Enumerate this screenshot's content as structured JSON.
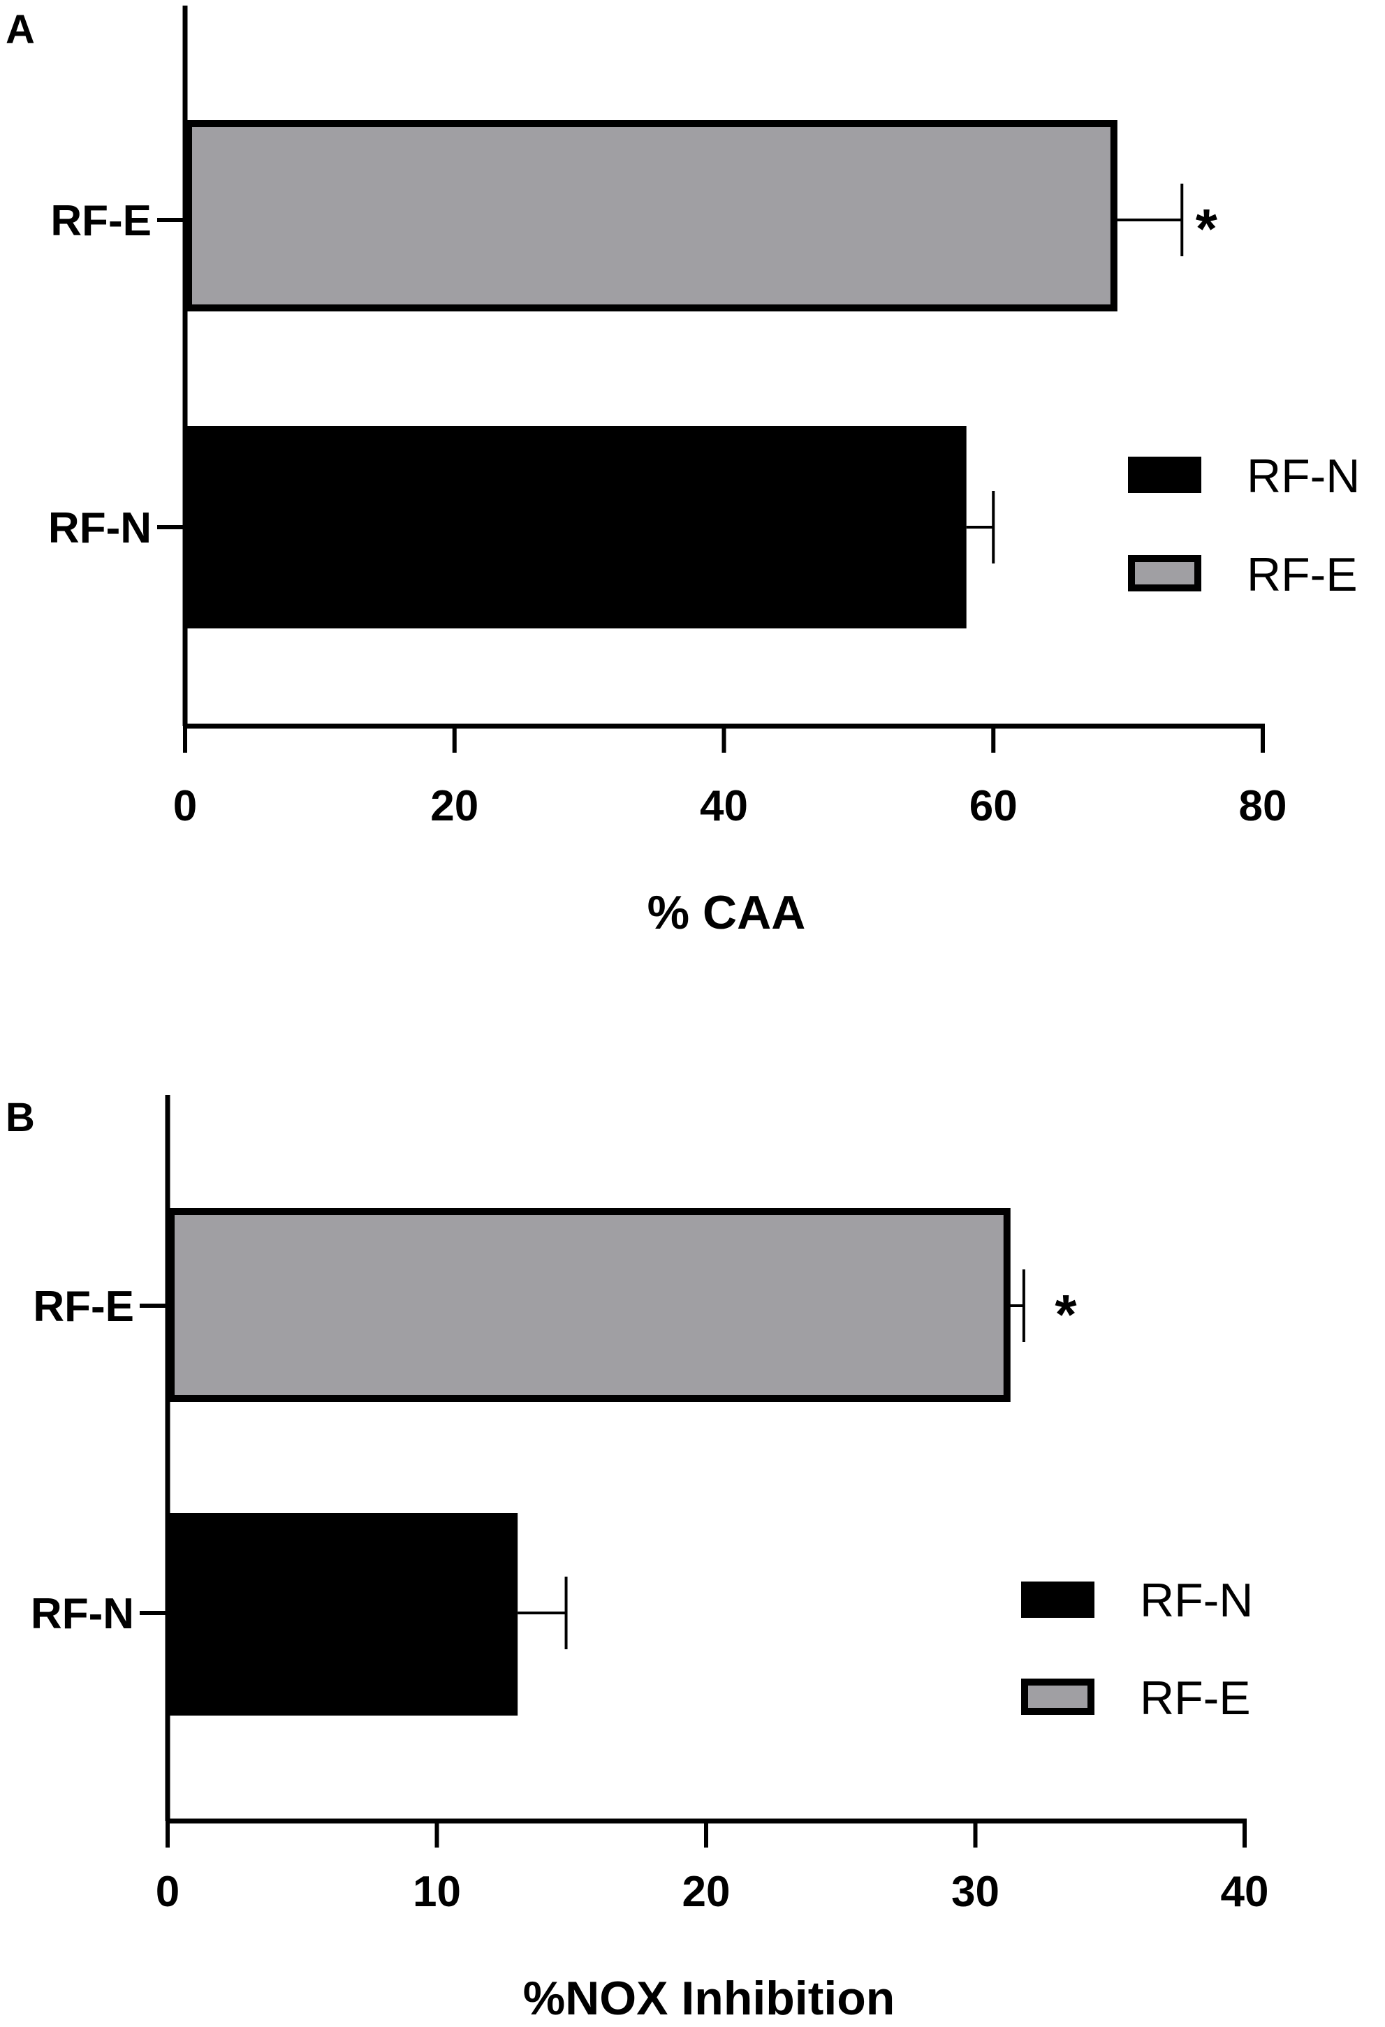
{
  "chart_data": [
    {
      "panel": "A",
      "type": "bar",
      "orientation": "horizontal",
      "categories": [
        "RF-E",
        "RF-N"
      ],
      "values": [
        69,
        58
      ],
      "errors": [
        5,
        2
      ],
      "significance": [
        "*",
        ""
      ],
      "xlabel": "% CAA",
      "xlim": [
        0,
        80
      ],
      "xticks": [
        "0",
        "20",
        "40",
        "60",
        "80"
      ],
      "legend": [
        "RF-N",
        "RF-E"
      ],
      "legend_position": "right"
    },
    {
      "panel": "B",
      "type": "bar",
      "orientation": "horizontal",
      "categories": [
        "RF-E",
        "RF-N"
      ],
      "values": [
        31.2,
        13
      ],
      "errors": [
        0.6,
        1.8
      ],
      "significance": [
        "*",
        ""
      ],
      "xlabel": "%NOX Inhibition",
      "xlim": [
        0,
        40
      ],
      "xticks": [
        "0",
        "10",
        "20",
        "30",
        "40"
      ],
      "legend": [
        "RF-N",
        "RF-E"
      ],
      "legend_position": "bottom-right"
    }
  ],
  "colors": {
    "RF-N": "#000000",
    "RF-E": "#a09fa3"
  }
}
